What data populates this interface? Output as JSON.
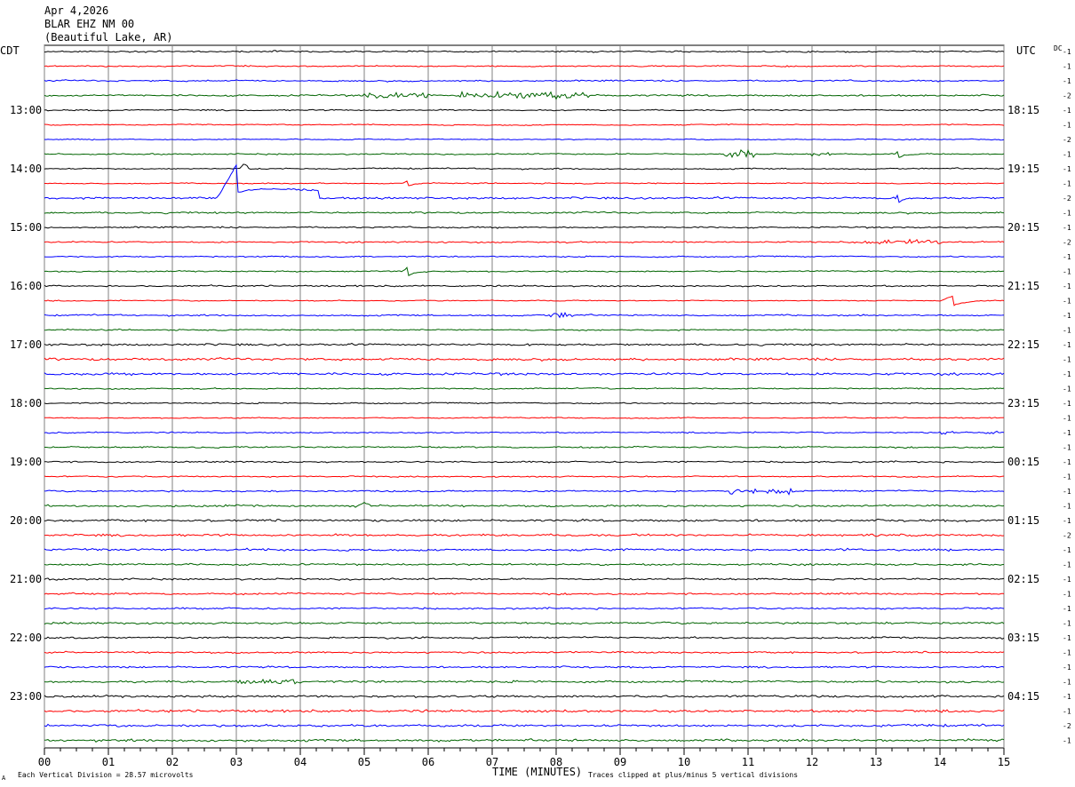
{
  "header": {
    "date": "Apr 4,2026",
    "station": "BLAR EHZ NM 00",
    "location": "(Beautiful Lake, AR)"
  },
  "left_tz": "CDT",
  "right_tz": "UTC",
  "dc_label": "DC",
  "footer": {
    "vertical_division": "Each Vertical Division =   28.57 microvolts",
    "clip_note": "Traces clipped at plus/minus 5 vertical divisions",
    "corner_mark": "A"
  },
  "colors": {
    "trace_cycle": [
      "#000000",
      "#ff0000",
      "#0000ff",
      "#006400"
    ],
    "grid": "#808080",
    "background": "#ffffff"
  },
  "chart_data": {
    "type": "line",
    "title": "",
    "xlabel": "TIME (MINUTES)",
    "ylabel": "",
    "xlim": [
      0,
      15
    ],
    "x_ticks": [
      "00",
      "01",
      "02",
      "03",
      "04",
      "05",
      "06",
      "07",
      "08",
      "09",
      "10",
      "11",
      "12",
      "13",
      "14",
      "15"
    ],
    "grid": "vertical at each minute",
    "trace_count": 48,
    "left_hour_labels": [
      {
        "trace": 4,
        "label": "13:00"
      },
      {
        "trace": 8,
        "label": "14:00"
      },
      {
        "trace": 12,
        "label": "15:00"
      },
      {
        "trace": 16,
        "label": "16:00"
      },
      {
        "trace": 20,
        "label": "17:00"
      },
      {
        "trace": 24,
        "label": "18:00"
      },
      {
        "trace": 28,
        "label": "19:00"
      },
      {
        "trace": 32,
        "label": "20:00"
      },
      {
        "trace": 36,
        "label": "21:00"
      },
      {
        "trace": 40,
        "label": "22:00"
      },
      {
        "trace": 44,
        "label": "23:00"
      }
    ],
    "right_hour_labels": [
      {
        "trace": 4,
        "label": "18:15"
      },
      {
        "trace": 8,
        "label": "19:15"
      },
      {
        "trace": 12,
        "label": "20:15"
      },
      {
        "trace": 16,
        "label": "21:15"
      },
      {
        "trace": 20,
        "label": "22:15"
      },
      {
        "trace": 24,
        "label": "23:15"
      },
      {
        "trace": 28,
        "label": "00:15"
      },
      {
        "trace": 32,
        "label": "01:15"
      },
      {
        "trace": 36,
        "label": "02:15"
      },
      {
        "trace": 40,
        "label": "03:15"
      },
      {
        "trace": 44,
        "label": "04:15"
      }
    ],
    "dc_offsets": [
      "-1",
      "-1",
      "-1",
      "-2",
      "-1",
      "-1",
      "-2",
      "-1",
      "-1",
      "-1",
      "-2",
      "-1",
      "-1",
      "-2",
      "-1",
      "-1",
      "-1",
      "-1",
      "-1",
      "-1",
      "-1",
      "-1",
      "-1",
      "-1",
      "-1",
      "-1",
      "-1",
      "-1",
      "-1",
      "-1",
      "-1",
      "-1",
      "-1",
      "-2",
      "-1",
      "-1",
      "-1",
      "-1",
      "-1",
      "-1",
      "-1",
      "-1",
      "-1",
      "-1",
      "-1",
      "-1",
      "-2",
      "-1"
    ],
    "noise_levels": [
      0.6,
      0.5,
      0.6,
      0.7,
      0.5,
      0.4,
      0.4,
      0.5,
      0.5,
      0.4,
      0.8,
      0.7,
      0.6,
      0.6,
      0.5,
      0.5,
      0.6,
      0.4,
      0.6,
      0.5,
      0.8,
      1.0,
      1.0,
      0.5,
      0.5,
      0.4,
      0.5,
      0.6,
      0.6,
      0.5,
      0.6,
      0.8,
      0.9,
      0.9,
      0.9,
      0.8,
      0.7,
      0.7,
      0.7,
      0.8,
      0.7,
      0.7,
      0.7,
      0.9,
      0.9,
      1.0,
      1.0,
      1.0
    ],
    "events": [
      {
        "trace": 3,
        "start_min": 5.0,
        "end_min": 6.1,
        "amp_div": 1.5,
        "kind": "burst"
      },
      {
        "trace": 3,
        "start_min": 6.5,
        "end_min": 8.5,
        "amp_div": 1.5,
        "kind": "burst"
      },
      {
        "trace": 7,
        "start_min": 10.6,
        "end_min": 11.1,
        "amp_div": 2.0,
        "kind": "burst"
      },
      {
        "trace": 7,
        "start_min": 12.0,
        "end_min": 12.3,
        "amp_div": 1.0,
        "kind": "burst"
      },
      {
        "trace": 7,
        "start_min": 13.3,
        "end_min": 13.6,
        "amp_div": 1.5,
        "kind": "step"
      },
      {
        "trace": 8,
        "start_min": 3.05,
        "end_min": 3.2,
        "amp_div": 1.5,
        "kind": "spike"
      },
      {
        "trace": 9,
        "start_min": 5.6,
        "end_min": 6.0,
        "amp_div": 1.2,
        "kind": "step"
      },
      {
        "trace": 10,
        "start_min": 2.7,
        "end_min": 4.3,
        "amp_div": 5.0,
        "kind": "transient"
      },
      {
        "trace": 10,
        "start_min": 13.3,
        "end_min": 13.6,
        "amp_div": 2.0,
        "kind": "step"
      },
      {
        "trace": 13,
        "start_min": 12.8,
        "end_min": 14.0,
        "amp_div": 1.0,
        "kind": "burst"
      },
      {
        "trace": 15,
        "start_min": 5.6,
        "end_min": 6.0,
        "amp_div": 2.0,
        "kind": "step"
      },
      {
        "trace": 17,
        "start_min": 14.0,
        "end_min": 15.0,
        "amp_div": 2.0,
        "kind": "step"
      },
      {
        "trace": 18,
        "start_min": 7.9,
        "end_min": 8.3,
        "amp_div": 1.0,
        "kind": "burst"
      },
      {
        "trace": 26,
        "start_min": 14.0,
        "end_min": 14.2,
        "amp_div": 0.8,
        "kind": "burst"
      },
      {
        "trace": 26,
        "start_min": 14.7,
        "end_min": 14.9,
        "amp_div": 0.8,
        "kind": "burst"
      },
      {
        "trace": 30,
        "start_min": 10.7,
        "end_min": 11.7,
        "amp_div": 1.2,
        "kind": "burst"
      },
      {
        "trace": 31,
        "start_min": 4.9,
        "end_min": 5.1,
        "amp_div": 1.2,
        "kind": "spike"
      },
      {
        "trace": 43,
        "start_min": 3.0,
        "end_min": 4.0,
        "amp_div": 1.0,
        "kind": "burst"
      }
    ]
  }
}
